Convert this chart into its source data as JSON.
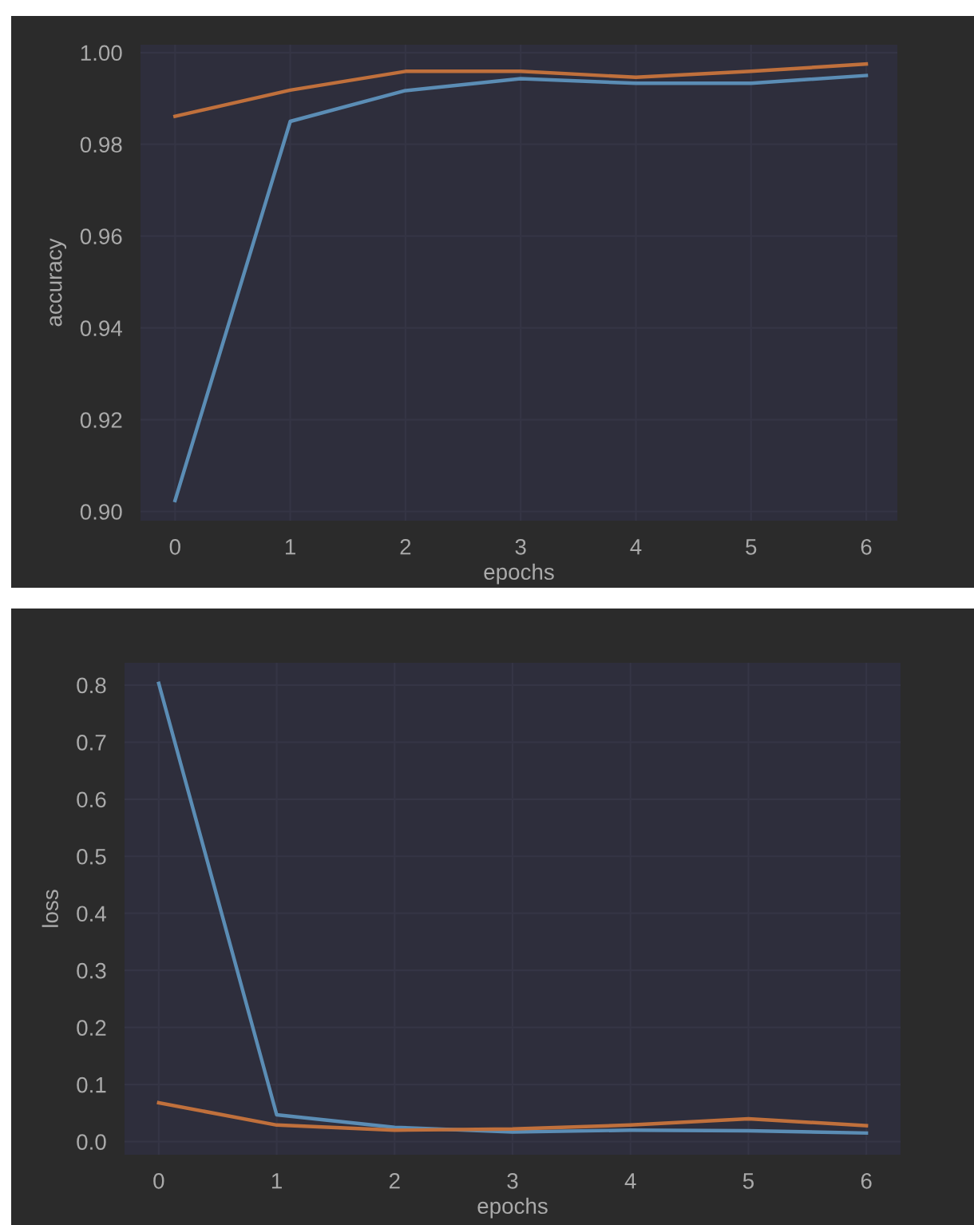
{
  "chart_data": [
    {
      "type": "line",
      "xlabel": "epochs",
      "ylabel": "accuracy",
      "x": [
        0,
        1,
        2,
        3,
        4,
        5,
        6
      ],
      "xlim": [
        -0.3,
        6.27
      ],
      "ylim": [
        0.898,
        1.0017
      ],
      "xticks": [
        0,
        1,
        2,
        3,
        4,
        5,
        6
      ],
      "yticks": [
        {
          "value": 0.9,
          "label": "0.90"
        },
        {
          "value": 0.92,
          "label": "0.92"
        },
        {
          "value": 0.94,
          "label": "0.94"
        },
        {
          "value": 0.96,
          "label": "0.96"
        },
        {
          "value": 0.98,
          "label": "0.98"
        },
        {
          "value": 1.0,
          "label": "1.00"
        }
      ],
      "grid": true,
      "series": [
        {
          "color": "#5b8db5",
          "values": [
            0.9024,
            0.985,
            0.9917,
            0.9943,
            0.9933,
            0.9933,
            0.995
          ]
        },
        {
          "color": "#c0703c",
          "values": [
            0.9861,
            0.9918,
            0.9959,
            0.9959,
            0.9946,
            0.9959,
            0.9975
          ]
        }
      ]
    },
    {
      "type": "line",
      "xlabel": "epochs",
      "ylabel": "loss",
      "x": [
        0,
        1,
        2,
        3,
        4,
        5,
        6
      ],
      "xlim": [
        -0.29,
        6.29
      ],
      "ylim": [
        -0.023,
        0.839
      ],
      "xticks": [
        0,
        1,
        2,
        3,
        4,
        5,
        6
      ],
      "yticks": [
        {
          "value": 0.0,
          "label": "0.0"
        },
        {
          "value": 0.1,
          "label": "0.1"
        },
        {
          "value": 0.2,
          "label": "0.2"
        },
        {
          "value": 0.3,
          "label": "0.3"
        },
        {
          "value": 0.4,
          "label": "0.4"
        },
        {
          "value": 0.5,
          "label": "0.5"
        },
        {
          "value": 0.6,
          "label": "0.6"
        },
        {
          "value": 0.7,
          "label": "0.7"
        },
        {
          "value": 0.8,
          "label": "0.8"
        }
      ],
      "grid": true,
      "series": [
        {
          "color": "#5b8db5",
          "values": [
            0.803,
            0.047,
            0.025,
            0.017,
            0.02,
            0.019,
            0.015
          ]
        },
        {
          "color": "#c0703c",
          "values": [
            0.068,
            0.029,
            0.02,
            0.022,
            0.029,
            0.04,
            0.028
          ]
        }
      ]
    }
  ]
}
